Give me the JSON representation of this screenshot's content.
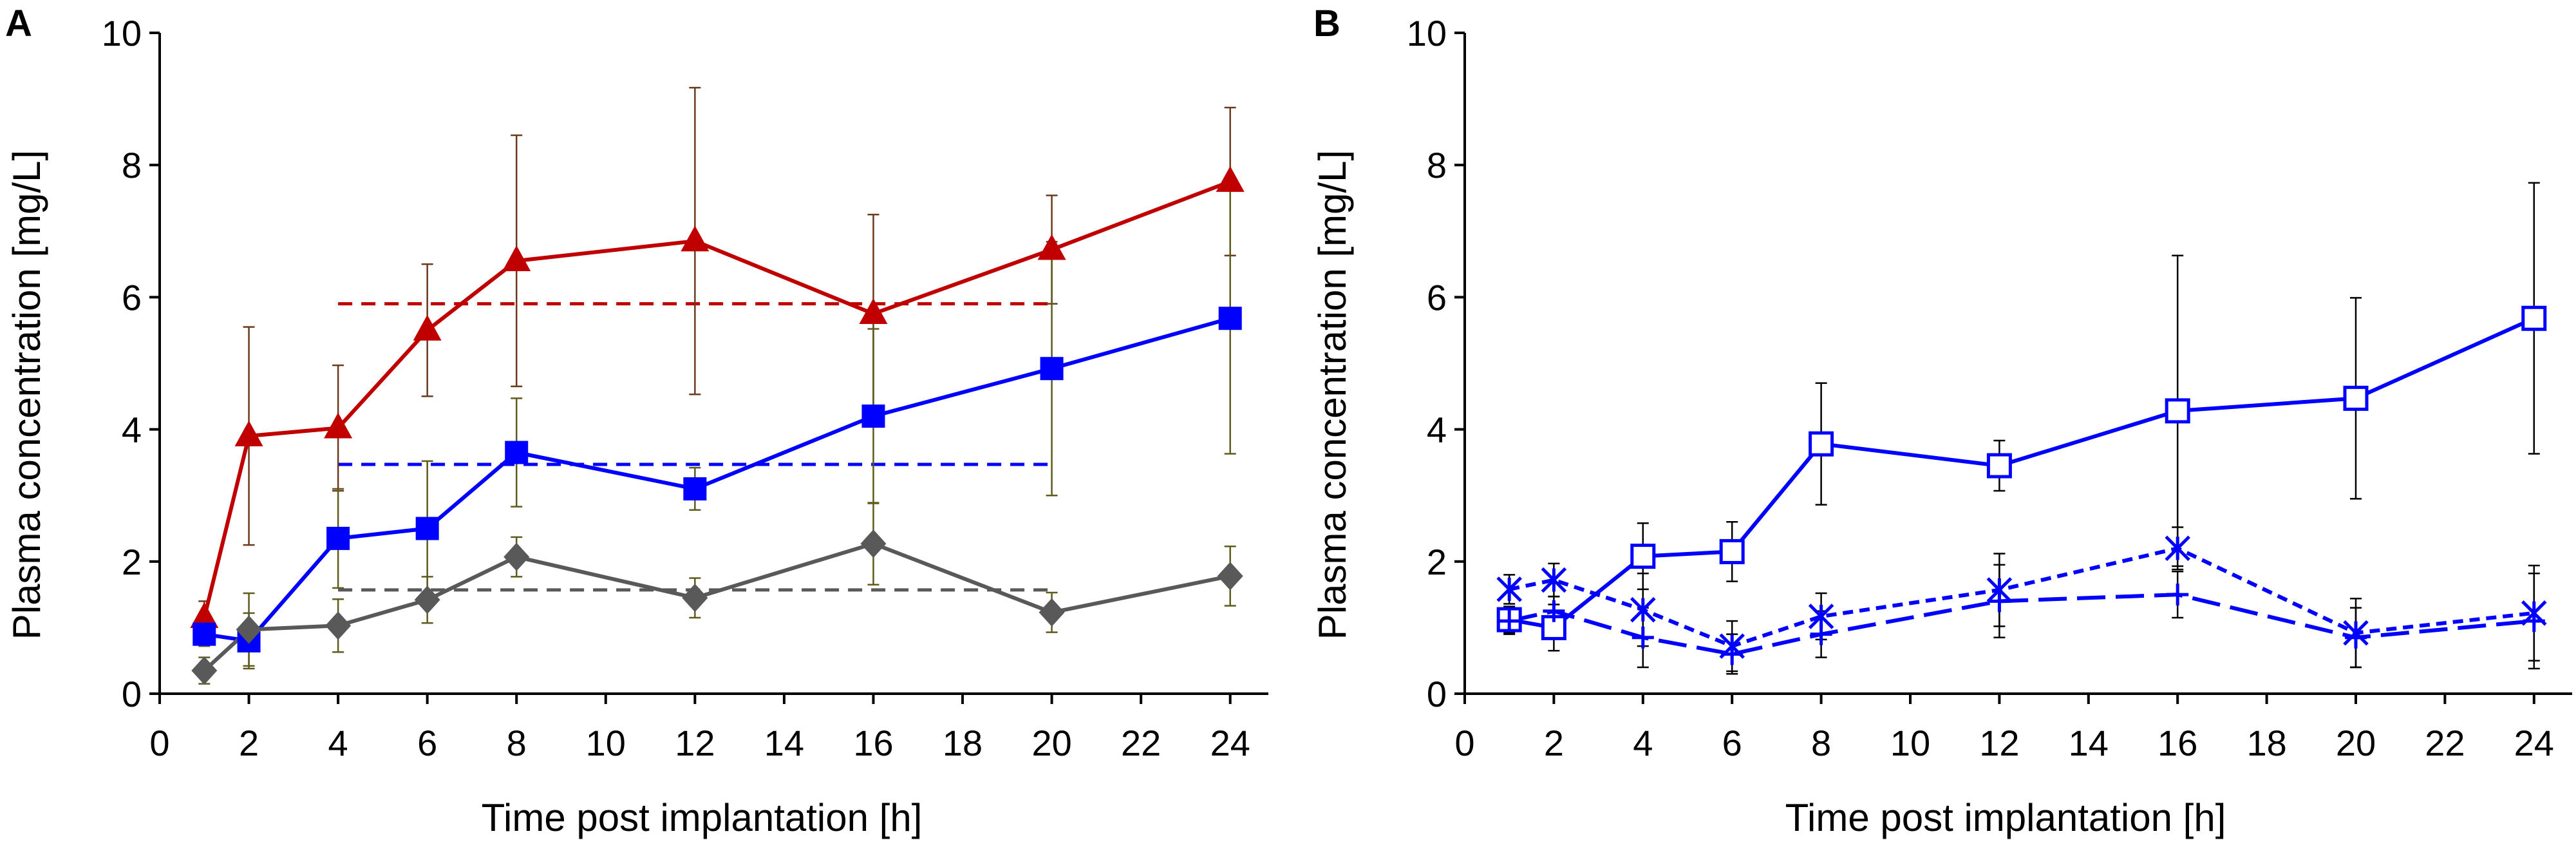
{
  "chart_data": [
    {
      "panel": "A",
      "type": "line",
      "xlabel": "Time post implantation [h]",
      "ylabel": "Plasma concentration [mg/L]",
      "xlim": [
        0,
        25
      ],
      "ylim": [
        0,
        10
      ],
      "xticks": [
        0,
        2,
        4,
        6,
        8,
        10,
        12,
        14,
        16,
        18,
        20,
        22,
        24
      ],
      "yticks": [
        0,
        2,
        4,
        6,
        8,
        10
      ],
      "grid": false,
      "legend": "none",
      "series": [
        {
          "name": "red-triangle",
          "color": "#c00000",
          "errcolor": "#6b3a1c",
          "marker": "triangle",
          "dash": "solid",
          "x": [
            1,
            2,
            4,
            6,
            8,
            12,
            16,
            20,
            24
          ],
          "y": [
            1.15,
            3.9,
            4.02,
            5.5,
            6.55,
            6.85,
            5.75,
            6.72,
            7.75
          ],
          "err": [
            0.25,
            1.65,
            0.95,
            1.0,
            1.9,
            2.32,
            1.5,
            0.82,
            1.12
          ]
        },
        {
          "name": "blue-square",
          "color": "#0000ff",
          "errcolor": "#5e5b1c",
          "marker": "square",
          "dash": "solid",
          "x": [
            1,
            2,
            4,
            6,
            8,
            12,
            16,
            20,
            24
          ],
          "y": [
            0.9,
            0.8,
            2.35,
            2.5,
            3.65,
            3.1,
            4.2,
            4.92,
            5.68
          ],
          "err": [
            0.18,
            0.42,
            0.75,
            1.02,
            0.82,
            0.32,
            1.32,
            1.92,
            2.05
          ]
        },
        {
          "name": "gray-diamond",
          "color": "#595959",
          "errcolor": "#5e5b1c",
          "marker": "diamond",
          "dash": "solid",
          "x": [
            1,
            2,
            4,
            6,
            8,
            12,
            16,
            20,
            24
          ],
          "y": [
            0.35,
            0.97,
            1.03,
            1.42,
            2.07,
            1.45,
            2.27,
            1.23,
            1.78
          ],
          "err": [
            0.2,
            0.55,
            0.4,
            0.35,
            0.3,
            0.3,
            0.62,
            0.3,
            0.45
          ]
        }
      ],
      "reference_lines": [
        {
          "name": "red-mean",
          "color": "#c00000",
          "x": [
            4,
            20
          ],
          "y": 5.9
        },
        {
          "name": "blue-mean",
          "color": "#0000ff",
          "x": [
            4,
            20
          ],
          "y": 3.47
        },
        {
          "name": "gray-mean",
          "color": "#595959",
          "x": [
            4,
            20
          ],
          "y": 1.57
        }
      ]
    },
    {
      "panel": "B",
      "type": "line",
      "xlabel": "Time post implantation [h]",
      "ylabel": "Plasma concentration [mg/L]",
      "xlim": [
        0,
        25
      ],
      "ylim": [
        0,
        10
      ],
      "xticks": [
        0,
        2,
        4,
        6,
        8,
        10,
        12,
        14,
        16,
        18,
        20,
        22,
        24
      ],
      "yticks": [
        0,
        2,
        4,
        6,
        8,
        10
      ],
      "grid": false,
      "legend": "none",
      "series": [
        {
          "name": "blue-open-square",
          "color": "#0000ff",
          "errcolor": "#000000",
          "marker": "open-square",
          "dash": "solid",
          "x": [
            1,
            2,
            4,
            6,
            8,
            12,
            16,
            20,
            24
          ],
          "y": [
            1.12,
            1.0,
            2.08,
            2.15,
            3.78,
            3.45,
            4.28,
            4.47,
            5.68
          ],
          "err": [
            0.2,
            0.35,
            0.5,
            0.45,
            0.92,
            0.38,
            2.35,
            1.52,
            2.05
          ]
        },
        {
          "name": "blue-star-dotted",
          "color": "#0000ff",
          "errcolor": "#000000",
          "marker": "star",
          "dash": "short",
          "x": [
            1,
            2,
            4,
            6,
            8,
            12,
            16,
            20,
            24
          ],
          "y": [
            1.58,
            1.72,
            1.27,
            0.72,
            1.17,
            1.57,
            2.2,
            0.92,
            1.22
          ],
          "err": [
            0.22,
            0.25,
            0.55,
            0.38,
            0.35,
            0.55,
            0.32,
            0.52,
            0.72
          ]
        },
        {
          "name": "blue-plus-dashed",
          "color": "#0000ff",
          "errcolor": "#000000",
          "marker": "plus",
          "dash": "long",
          "x": [
            1,
            2,
            4,
            6,
            8,
            12,
            16,
            20,
            24
          ],
          "y": [
            1.1,
            1.25,
            0.85,
            0.6,
            0.9,
            1.4,
            1.5,
            0.85,
            1.1
          ],
          "err": [
            0.2,
            0.22,
            0.45,
            0.3,
            0.35,
            0.55,
            0.35,
            0.45,
            0.72
          ]
        }
      ]
    }
  ]
}
